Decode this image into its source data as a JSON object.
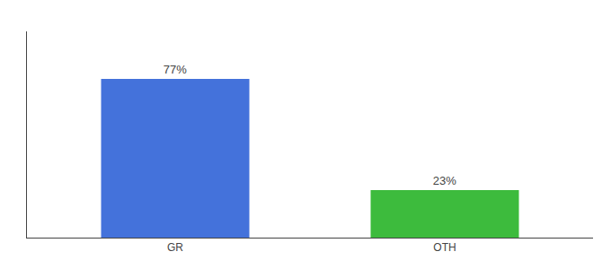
{
  "chart_data": {
    "type": "bar",
    "categories": [
      "GR",
      "OTH"
    ],
    "values": [
      77,
      23
    ],
    "value_labels": [
      "77%",
      "23%"
    ],
    "colors": [
      "#4472db",
      "#3dbb3d"
    ],
    "ylim": [
      0,
      100
    ],
    "data_labels": true,
    "tick_labels": "x",
    "grid": false
  }
}
